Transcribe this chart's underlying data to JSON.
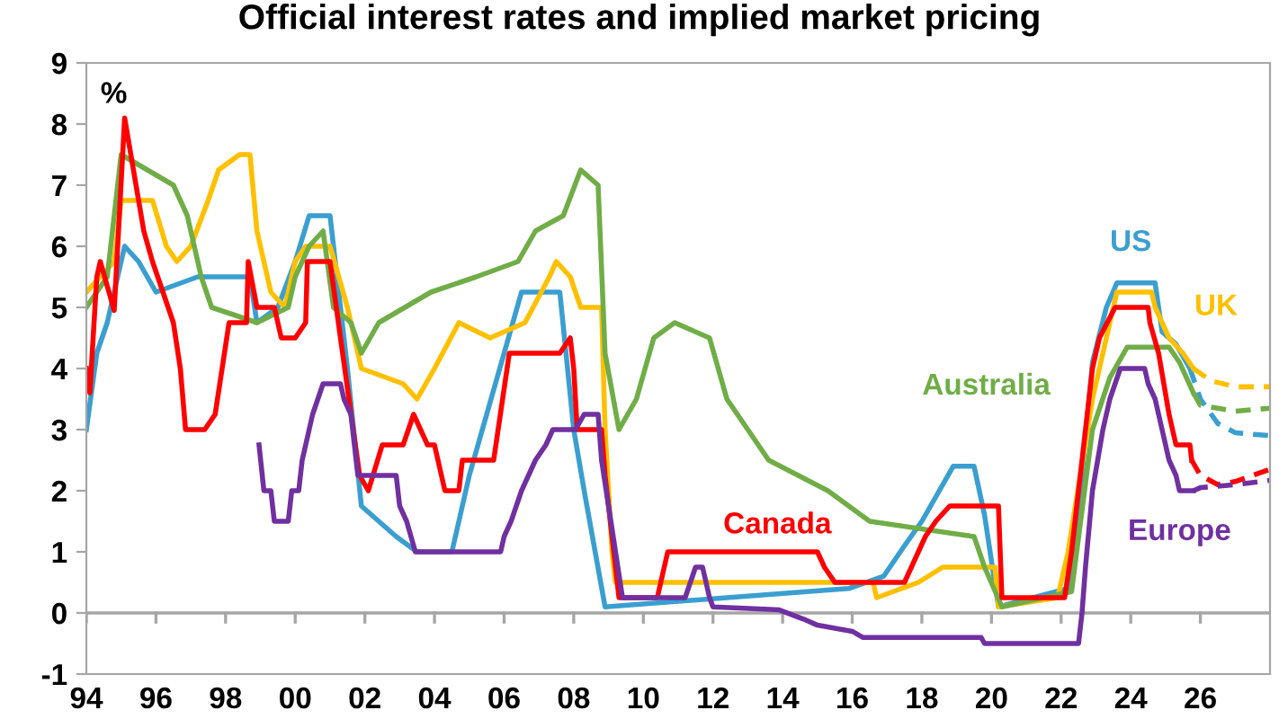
{
  "chart_data": {
    "type": "line",
    "title": "Official interest rates and implied market pricing",
    "ylabel": "%",
    "xlim": [
      1994,
      2028
    ],
    "ylim": [
      -1,
      9
    ],
    "xticks": [
      {
        "value": 1994,
        "label": "94"
      },
      {
        "value": 1996,
        "label": "96"
      },
      {
        "value": 1998,
        "label": "98"
      },
      {
        "value": 2000,
        "label": "00"
      },
      {
        "value": 2002,
        "label": "02"
      },
      {
        "value": 2004,
        "label": "04"
      },
      {
        "value": 2006,
        "label": "06"
      },
      {
        "value": 2008,
        "label": "08"
      },
      {
        "value": 2010,
        "label": "10"
      },
      {
        "value": 2012,
        "label": "12"
      },
      {
        "value": 2014,
        "label": "14"
      },
      {
        "value": 2016,
        "label": "16"
      },
      {
        "value": 2018,
        "label": "18"
      },
      {
        "value": 2020,
        "label": "20"
      },
      {
        "value": 2022,
        "label": "22"
      },
      {
        "value": 2024,
        "label": "24"
      },
      {
        "value": 2026,
        "label": "26"
      }
    ],
    "yticks": [
      -1,
      0,
      1,
      2,
      3,
      4,
      5,
      6,
      7,
      8,
      9
    ],
    "grid": false,
    "ref_lines": [
      {
        "axis": "y",
        "value": 0,
        "color": "#a6a6a6"
      }
    ],
    "series": [
      {
        "name": "US",
        "color": "#3a9fd0",
        "line_style": "solid",
        "x": [
          1994,
          1994.3,
          1994.6,
          1994.9,
          1995.1,
          1995.5,
          1996.0,
          1997.2,
          1998.7,
          1998.9,
          1999.5,
          2000.0,
          2000.4,
          2001.0,
          2001.5,
          2001.9,
          2002.9,
          2003.5,
          2004.5,
          2005.0,
          2006.5,
          2007.6,
          2008.0,
          2008.3,
          2008.9,
          2015.9,
          2016.9,
          2017.5,
          2018.0,
          2018.9,
          2019.5,
          2019.8,
          2020.2,
          2022.2,
          2022.5,
          2022.9,
          2023.3,
          2023.6,
          2024.7,
          2024.9,
          2025.3,
          2025.7
        ],
        "values": [
          3.0,
          4.25,
          4.75,
          5.5,
          6.0,
          5.75,
          5.25,
          5.5,
          5.5,
          4.75,
          5.0,
          5.75,
          6.5,
          6.5,
          4.0,
          1.75,
          1.25,
          1.0,
          1.0,
          2.25,
          5.25,
          5.25,
          3.0,
          2.0,
          0.1,
          0.4,
          0.6,
          1.1,
          1.5,
          2.4,
          2.4,
          1.6,
          0.1,
          0.4,
          1.6,
          4.1,
          5.0,
          5.4,
          5.4,
          4.6,
          4.4,
          4.0
        ]
      },
      {
        "color": "#3a9fd0",
        "line_style": "dashed",
        "x": [
          2025.7,
          2026.0,
          2026.5,
          2027.0,
          2028.0
        ],
        "values": [
          4.0,
          3.5,
          3.1,
          2.95,
          2.9
        ]
      },
      {
        "name": "UK",
        "color": "#ffc000",
        "line_style": "solid",
        "x": [
          1994,
          1994.8,
          1995.0,
          1995.9,
          1996.3,
          1996.6,
          1997.0,
          1997.5,
          1997.8,
          1998.4,
          1998.7,
          1998.9,
          1999.3,
          1999.7,
          2000.0,
          2000.3,
          2001.0,
          2001.5,
          2001.9,
          2003.1,
          2003.5,
          2004.0,
          2004.7,
          2005.6,
          2006.6,
          2007.3,
          2007.5,
          2007.9,
          2008.2,
          2008.8,
          2008.9,
          2009.1,
          2009.2,
          2016.6,
          2016.7,
          2017.9,
          2018.6,
          2020.1,
          2020.2,
          2021.9,
          2022.2,
          2022.9,
          2023.5,
          2023.6,
          2024.6,
          2024.7,
          2025.1,
          2025.5,
          2025.8
        ],
        "values": [
          5.25,
          5.75,
          6.75,
          6.75,
          6.0,
          5.75,
          6.0,
          6.75,
          7.25,
          7.5,
          7.5,
          6.25,
          5.25,
          5.0,
          5.75,
          6.0,
          6.0,
          5.0,
          4.0,
          3.75,
          3.5,
          4.0,
          4.75,
          4.5,
          4.75,
          5.5,
          5.75,
          5.5,
          5.0,
          5.0,
          3.0,
          1.0,
          0.5,
          0.5,
          0.25,
          0.5,
          0.75,
          0.75,
          0.1,
          0.25,
          1.0,
          3.5,
          5.0,
          5.25,
          5.25,
          5.0,
          4.5,
          4.25,
          4.0
        ]
      },
      {
        "color": "#ffc000",
        "line_style": "dashed",
        "x": [
          2025.8,
          2026.3,
          2027.0,
          2028.0
        ],
        "values": [
          4.0,
          3.8,
          3.7,
          3.7
        ]
      },
      {
        "name": "Australia",
        "color": "#70ad47",
        "line_style": "solid",
        "x": [
          1994,
          1994.6,
          1995.0,
          1996.5,
          1996.9,
          1997.3,
          1997.6,
          1998.9,
          1999.8,
          2000.0,
          2000.4,
          2000.8,
          2001.1,
          2001.6,
          2001.9,
          2002.4,
          2003.9,
          2005.2,
          2006.4,
          2006.9,
          2007.7,
          2008.2,
          2008.7,
          2008.9,
          2009.3,
          2009.8,
          2010.3,
          2010.9,
          2011.9,
          2012.4,
          2013.0,
          2013.6,
          2015.3,
          2016.5,
          2019.5,
          2019.8,
          2020.3,
          2022.3,
          2022.9,
          2023.4,
          2023.9,
          2025.1,
          2025.4,
          2025.8
        ],
        "values": [
          5.0,
          5.5,
          7.5,
          7.0,
          6.5,
          5.5,
          5.0,
          4.75,
          5.0,
          5.5,
          6.0,
          6.25,
          5.0,
          4.75,
          4.25,
          4.75,
          5.25,
          5.5,
          5.75,
          6.25,
          6.5,
          7.25,
          7.0,
          4.25,
          3.0,
          3.5,
          4.5,
          4.75,
          4.5,
          3.5,
          3.0,
          2.5,
          2.0,
          1.5,
          1.25,
          0.75,
          0.1,
          0.35,
          3.0,
          3.85,
          4.35,
          4.35,
          4.1,
          3.6
        ]
      },
      {
        "color": "#70ad47",
        "line_style": "dashed",
        "x": [
          2025.8,
          2026.0,
          2027.0,
          2028.0
        ],
        "values": [
          3.6,
          3.4,
          3.3,
          3.35
        ]
      },
      {
        "name": "Canada",
        "color": "#ff0000",
        "line_style": "solid",
        "x": [
          1994,
          1994.1,
          1994.3,
          1994.4,
          1994.8,
          1995.1,
          1995.65,
          1995.9,
          1996.5,
          1996.7,
          1996.85,
          1997.4,
          1997.7,
          1998.1,
          1998.6,
          1998.65,
          1998.9,
          1999.4,
          1999.6,
          2000.0,
          2000.3,
          2000.35,
          2001.0,
          2001.3,
          2001.85,
          2002.1,
          2002.5,
          2003.1,
          2003.4,
          2003.8,
          2004.0,
          2004.3,
          2004.7,
          2004.8,
          2005.7,
          2006.15,
          2007.6,
          2007.9,
          2008.0,
          2008.1,
          2008.8,
          2008.9,
          2009.3,
          2010.4,
          2010.7,
          2015.0,
          2015.2,
          2015.5,
          2017.5,
          2017.9,
          2018.1,
          2018.4,
          2018.8,
          2020.2,
          2020.3,
          2022.1,
          2022.3,
          2022.6,
          2022.9,
          2023.1,
          2023.55,
          2024.5,
          2024.55,
          2024.8,
          2024.95,
          2025.1,
          2025.3,
          2025.7,
          2025.75
        ],
        "values": [
          4.0,
          3.6,
          5.5,
          5.75,
          4.95,
          8.1,
          6.25,
          5.75,
          4.75,
          4.0,
          3.0,
          3.0,
          3.25,
          4.75,
          4.75,
          5.75,
          5.0,
          5.0,
          4.5,
          4.5,
          4.75,
          5.75,
          5.75,
          4.5,
          2.25,
          2.0,
          2.75,
          2.75,
          3.25,
          2.75,
          2.75,
          2.0,
          2.0,
          2.5,
          2.5,
          4.25,
          4.25,
          4.5,
          4.0,
          3.0,
          3.0,
          2.25,
          0.25,
          0.25,
          1.0,
          1.0,
          0.75,
          0.5,
          0.5,
          1.0,
          1.25,
          1.5,
          1.75,
          1.75,
          0.25,
          0.25,
          1.0,
          2.5,
          4.0,
          4.5,
          5.0,
          5.0,
          4.75,
          4.25,
          3.75,
          3.25,
          2.75,
          2.75,
          2.5
        ]
      },
      {
        "color": "#ff0000",
        "line_style": "dashed",
        "x": [
          2025.75,
          2026.0,
          2026.5,
          2027.0,
          2028.0
        ],
        "values": [
          2.5,
          2.25,
          2.1,
          2.15,
          2.35
        ]
      },
      {
        "name": "Europe",
        "color": "#7030a0",
        "line_style": "solid",
        "x": [
          1998.96,
          1999.1,
          1999.3,
          1999.4,
          1999.8,
          1999.9,
          2000.1,
          2000.2,
          2000.4,
          2000.5,
          2000.8,
          2001.3,
          2001.4,
          2001.6,
          2001.8,
          2002.9,
          2003.0,
          2003.2,
          2003.45,
          2005.9,
          2006.0,
          2006.2,
          2006.5,
          2006.9,
          2007.2,
          2007.4,
          2008.05,
          2008.3,
          2008.7,
          2008.8,
          2009.2,
          2009.4,
          2011.2,
          2011.5,
          2011.7,
          2011.9,
          2012.0,
          2013.9,
          2014.6,
          2015.0,
          2016.0,
          2016.3,
          2019.7,
          2019.8,
          2022.5,
          2022.6,
          2022.7,
          2022.9,
          2023.2,
          2023.4,
          2023.7,
          2024.4,
          2024.5,
          2024.7,
          2024.8,
          2024.9,
          2025.1,
          2025.3,
          2025.4,
          2025.8
        ],
        "values": [
          2.75,
          2.0,
          2.0,
          1.5,
          1.5,
          2.0,
          2.0,
          2.5,
          3.0,
          3.25,
          3.75,
          3.75,
          3.5,
          3.25,
          2.25,
          2.25,
          1.75,
          1.5,
          1.0,
          1.0,
          1.25,
          1.5,
          2.0,
          2.5,
          2.75,
          3.0,
          3.0,
          3.25,
          3.25,
          2.5,
          1.0,
          0.25,
          0.25,
          0.75,
          0.75,
          0.25,
          0.1,
          0.05,
          -0.1,
          -0.2,
          -0.3,
          -0.4,
          -0.4,
          -0.5,
          -0.5,
          0.0,
          0.75,
          2.0,
          3.0,
          3.5,
          4.0,
          4.0,
          3.75,
          3.5,
          3.25,
          3.0,
          2.5,
          2.25,
          2.0,
          2.0
        ]
      },
      {
        "color": "#7030a0",
        "line_style": "dashed",
        "x": [
          2025.8,
          2026.0,
          2027.0,
          2028.0
        ],
        "values": [
          2.0,
          2.05,
          2.1,
          2.17
        ]
      }
    ]
  }
}
